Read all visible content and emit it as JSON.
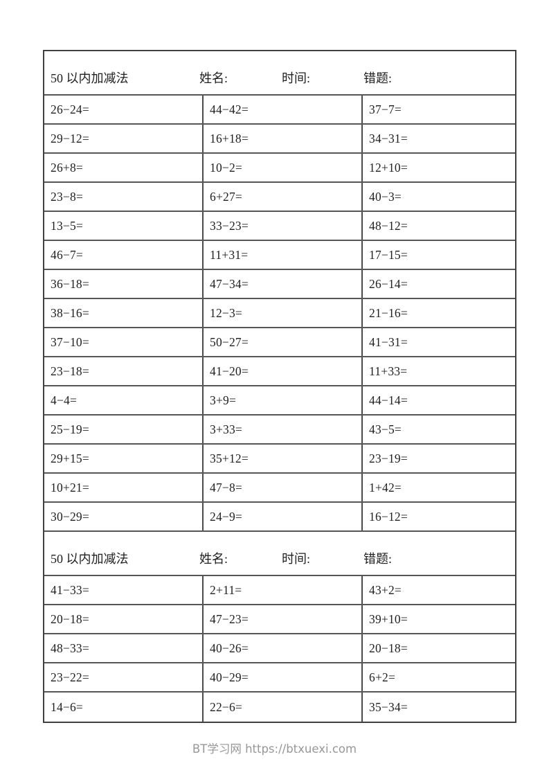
{
  "page": {
    "footer": "BT学习网 https://btxuexi.com"
  },
  "sections": [
    {
      "title": "50 以内加减法",
      "name_label": "姓名:",
      "time_label": "时间:",
      "wrong_label": "错题:",
      "rows": [
        [
          "26−24=",
          "44−42=",
          "37−7="
        ],
        [
          "29−12=",
          "16+18=",
          "34−31="
        ],
        [
          "26+8=",
          "10−2=",
          "12+10="
        ],
        [
          "23−8=",
          "6+27=",
          "40−3="
        ],
        [
          "13−5=",
          "33−23=",
          "48−12="
        ],
        [
          "46−7=",
          "11+31=",
          "17−15="
        ],
        [
          "36−18=",
          "47−34=",
          "26−14="
        ],
        [
          "38−16=",
          "12−3=",
          "21−16="
        ],
        [
          "37−10=",
          "50−27=",
          "41−31="
        ],
        [
          "23−18=",
          "41−20=",
          "11+33="
        ],
        [
          "4−4=",
          "3+9=",
          "44−14="
        ],
        [
          "25−19=",
          "3+33=",
          "43−5="
        ],
        [
          "29+15=",
          "35+12=",
          "23−19="
        ],
        [
          "10+21=",
          "47−8=",
          "1+42="
        ],
        [
          "30−29=",
          "24−9=",
          "16−12="
        ]
      ]
    },
    {
      "title": "50 以内加减法",
      "name_label": "姓名:",
      "time_label": "时间:",
      "wrong_label": "错题:",
      "rows": [
        [
          "41−33=",
          "2+11=",
          "43+2="
        ],
        [
          "20−18=",
          "47−23=",
          "39+10="
        ],
        [
          "48−33=",
          "40−26=",
          "20−18="
        ],
        [
          "23−22=",
          "40−29=",
          "6+2="
        ],
        [
          "14−6=",
          "22−6=",
          "35−34="
        ]
      ]
    }
  ]
}
